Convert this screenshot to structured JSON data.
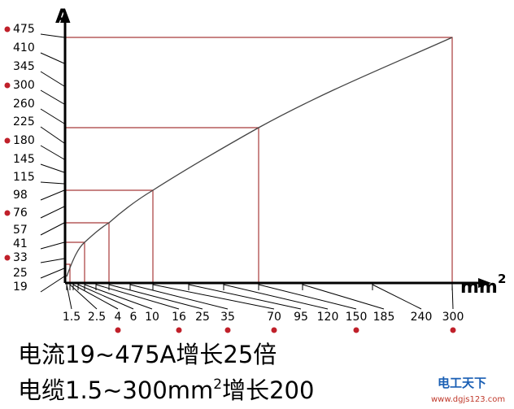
{
  "axis": {
    "y_title": "A",
    "x_title": "mm",
    "x_title_sup": "2"
  },
  "y_ticks": [
    "475",
    "410",
    "345",
    "300",
    "260",
    "225",
    "180",
    "145",
    "115",
    "98",
    "76",
    "57",
    "41",
    "33",
    "25",
    "19"
  ],
  "x_ticks": [
    "1.5",
    "2.5",
    "4",
    "6",
    "10",
    "16",
    "25",
    "35",
    "70",
    "95",
    "120",
    "150",
    "185",
    "240",
    "300"
  ],
  "caption": [
    {
      "text": "电流19~475A增长25倍"
    },
    {
      "text": "电缆1.5~300mm",
      "sup": "2",
      "tail": "增长200"
    }
  ],
  "watermark": {
    "name": "电工天下",
    "url": "www.dgjs123.com"
  }
}
